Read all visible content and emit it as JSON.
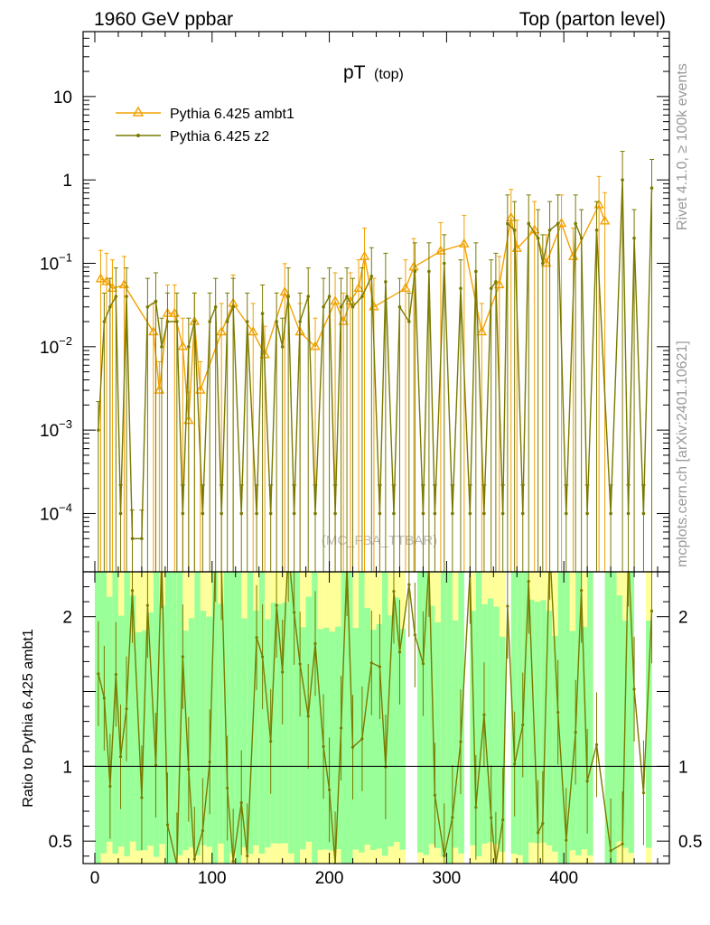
{
  "header": {
    "left": "1960 GeV ppbar",
    "right": "Top (parton level)"
  },
  "title": {
    "main": "pT",
    "sub": "(top)"
  },
  "side_text": {
    "rivet": "Rivet 4.1.0, ≥ 100k events",
    "site": "mcplots.cern.ch [arXiv:2401.10621]"
  },
  "watermark": "(MC_FBA_TTBAR)",
  "legend": [
    {
      "label": "Pythia 6.425 ambt1",
      "color": "#f2a100",
      "marker": "triangle"
    },
    {
      "label": "Pythia 6.425 z2",
      "color": "#7a7a00",
      "marker": "dot"
    }
  ],
  "colors": {
    "ambt1": "#f2a100",
    "z2": "#7a7a00",
    "band_inner": "#99ff99",
    "band_outer": "#ffff99"
  },
  "chart_data": {
    "type": "line",
    "xlim": [
      -10,
      490
    ],
    "main": {
      "yscale": "log",
      "ylim": [
        2e-05,
        60
      ],
      "yticks": [
        {
          "v": 10,
          "label": "10"
        },
        {
          "v": 1,
          "label": "1"
        },
        {
          "v": 0.1,
          "label": "10",
          "exp": "−1"
        },
        {
          "v": 0.01,
          "label": "10",
          "exp": "−2"
        },
        {
          "v": 0.001,
          "label": "10",
          "exp": "−3"
        },
        {
          "v": 0.0001,
          "label": "10",
          "exp": "−4"
        }
      ]
    },
    "ratio": {
      "ylabel": "Ratio to Pythia 6.425 ambt1",
      "ylim": [
        0.35,
        2.3
      ],
      "yticks": [
        {
          "v": 2,
          "label": "2"
        },
        {
          "v": 1,
          "label": "1"
        },
        {
          "v": 0.5,
          "label": "0.5"
        }
      ]
    },
    "xticks": [
      {
        "v": 0,
        "label": "0"
      },
      {
        "v": 100,
        "label": "100"
      },
      {
        "v": 200,
        "label": "200"
      },
      {
        "v": 300,
        "label": "300"
      },
      {
        "v": 400,
        "label": "400"
      }
    ],
    "series": [
      {
        "name": "Pythia 6.425 ambt1",
        "points": [
          [
            5,
            0.065
          ],
          [
            10,
            0.06
          ],
          [
            15,
            0.05
          ],
          [
            25,
            0.055
          ],
          [
            50,
            0.015
          ],
          [
            55,
            0.003
          ],
          [
            62,
            0.025
          ],
          [
            68,
            0.025
          ],
          [
            75,
            0.01
          ],
          [
            80,
            0.0013
          ],
          [
            85,
            0.02
          ],
          [
            90,
            0.003
          ],
          [
            108,
            0.015
          ],
          [
            118,
            0.033
          ],
          [
            135,
            0.015
          ],
          [
            145,
            0.008
          ],
          [
            162,
            0.045
          ],
          [
            175,
            0.015
          ],
          [
            188,
            0.01
          ],
          [
            205,
            0.035
          ],
          [
            212,
            0.02
          ],
          [
            218,
            0.035
          ],
          [
            225,
            0.05
          ],
          [
            230,
            0.12
          ],
          [
            238,
            0.03
          ],
          [
            265,
            0.05
          ],
          [
            272,
            0.09
          ],
          [
            295,
            0.14
          ],
          [
            315,
            0.17
          ],
          [
            330,
            0.015
          ],
          [
            345,
            0.055
          ],
          [
            355,
            0.35
          ],
          [
            360,
            0.15
          ],
          [
            375,
            0.25
          ],
          [
            385,
            0.1
          ],
          [
            398,
            0.3
          ],
          [
            408,
            0.12
          ],
          [
            430,
            0.5
          ],
          [
            435,
            0.32
          ]
        ]
      },
      {
        "name": "Pythia 6.425 z2",
        "points": [
          [
            3,
            0.001
          ],
          [
            8,
            0.02
          ],
          [
            13,
            0.03
          ],
          [
            18,
            0.04
          ],
          [
            22,
            0.0001
          ],
          [
            27,
            0.04
          ],
          [
            32,
            5e-05
          ],
          [
            40,
            5e-05
          ],
          [
            45,
            0.03
          ],
          [
            52,
            0.035
          ],
          [
            57,
            0.01
          ],
          [
            62,
            0.02
          ],
          [
            70,
            0.02
          ],
          [
            75,
            0.0001
          ],
          [
            80,
            0.01
          ],
          [
            85,
            0.02
          ],
          [
            92,
            0.0001
          ],
          [
            98,
            0.02
          ],
          [
            103,
            0.03
          ],
          [
            108,
            0.0001
          ],
          [
            113,
            0.02
          ],
          [
            118,
            0.03
          ],
          [
            125,
            0.0001
          ],
          [
            130,
            0.02
          ],
          [
            138,
            0.0001
          ],
          [
            143,
            0.025
          ],
          [
            150,
            0.0001
          ],
          [
            155,
            0.02
          ],
          [
            160,
            0.01
          ],
          [
            165,
            0.04
          ],
          [
            170,
            0.0001
          ],
          [
            175,
            0.02
          ],
          [
            182,
            0.04
          ],
          [
            188,
            0.0001
          ],
          [
            195,
            0.03
          ],
          [
            200,
            0.04
          ],
          [
            205,
            0.0001
          ],
          [
            210,
            0.03
          ],
          [
            215,
            0.04
          ],
          [
            220,
            0.03
          ],
          [
            228,
            0.04
          ],
          [
            236,
            0.07
          ],
          [
            243,
            0.0001
          ],
          [
            248,
            0.06
          ],
          [
            255,
            0.0001
          ],
          [
            260,
            0.03
          ],
          [
            268,
            0.02
          ],
          [
            273,
            0.08
          ],
          [
            280,
            0.0001
          ],
          [
            285,
            0.08
          ],
          [
            290,
            0.0001
          ],
          [
            298,
            0.1
          ],
          [
            305,
            0.0001
          ],
          [
            312,
            0.05
          ],
          [
            320,
            0.0001
          ],
          [
            325,
            0.08
          ],
          [
            332,
            0.0001
          ],
          [
            338,
            0.05
          ],
          [
            342,
            0.06
          ],
          [
            348,
            0.0001
          ],
          [
            352,
            0.3
          ],
          [
            358,
            0.25
          ],
          [
            365,
            0.0001
          ],
          [
            370,
            0.3
          ],
          [
            378,
            0.2
          ],
          [
            382,
            0.1
          ],
          [
            388,
            0.25
          ],
          [
            395,
            0.3
          ],
          [
            402,
            0.0001
          ],
          [
            410,
            0.3
          ],
          [
            415,
            0.2
          ],
          [
            420,
            0.0001
          ],
          [
            428,
            0.25
          ],
          [
            440,
            0.0001
          ],
          [
            450,
            1.0
          ],
          [
            455,
            0.0001
          ],
          [
            460,
            0.2
          ],
          [
            468,
            0.0001
          ],
          [
            475,
            0.8
          ]
        ]
      }
    ]
  }
}
